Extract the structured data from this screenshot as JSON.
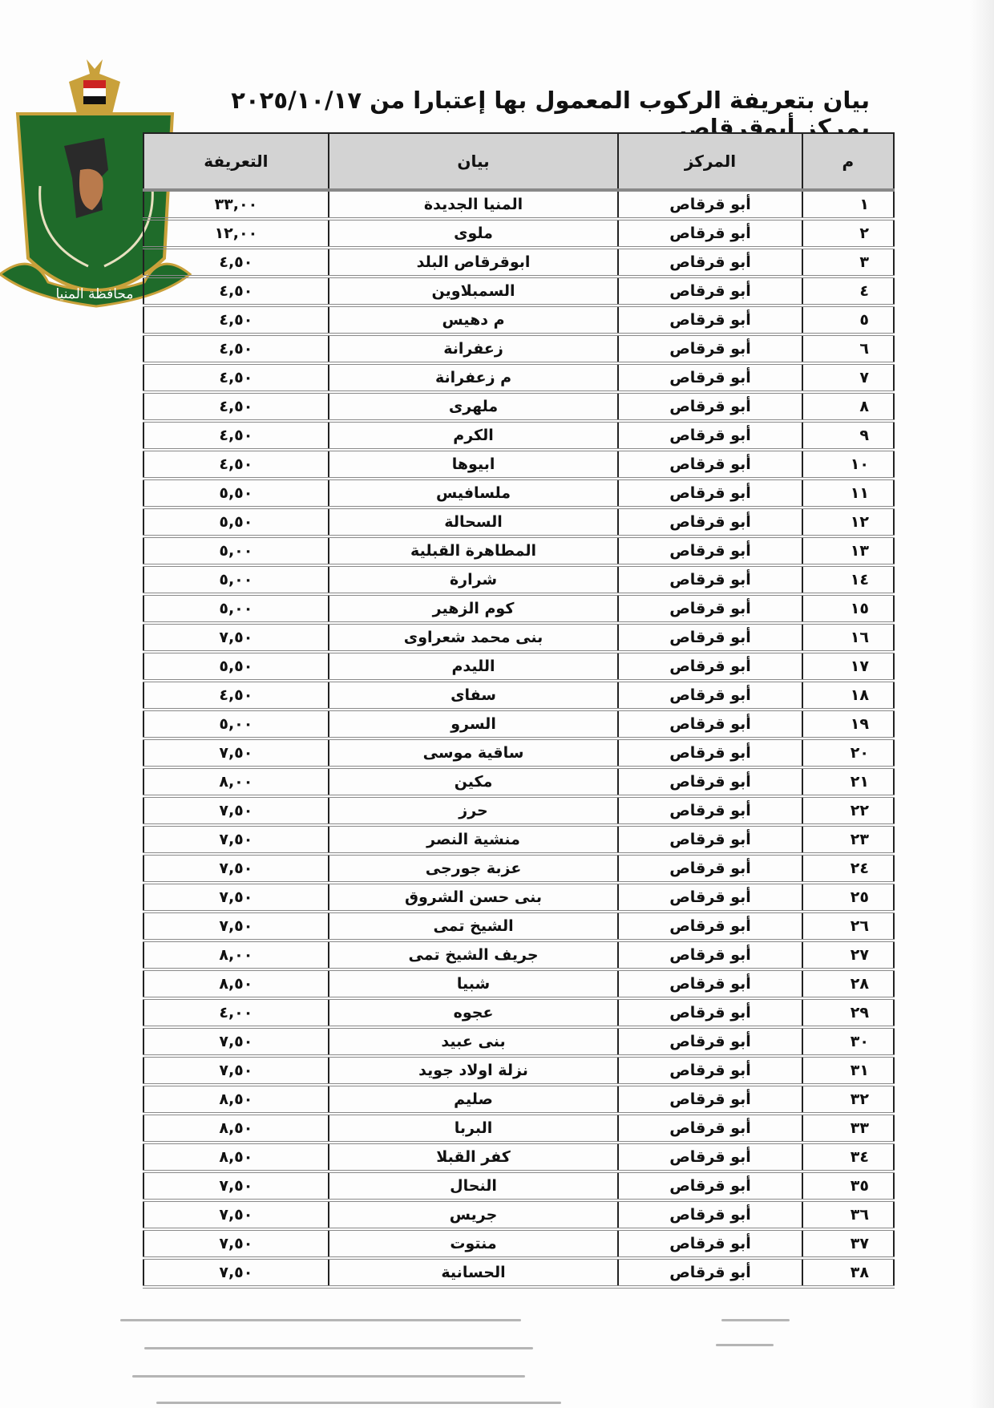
{
  "title": "بيان بتعريفة الركوب المعمول بها إعتبارا من ٢٠٢٥/١٠/١٧ بمركز أبوقرقاص",
  "logo": {
    "text": "محافظة المنيا",
    "colors": {
      "green": "#1f6b2a",
      "gold": "#c9a13b"
    }
  },
  "table": {
    "headers": {
      "num": "م",
      "center": "المركز",
      "desc": "بيان",
      "fare": "التعريفة"
    },
    "rows": [
      {
        "num": "١",
        "center": "أبو قرقاص",
        "desc": "المنيا الجديدة",
        "fare": "٣٣,٠٠"
      },
      {
        "num": "٢",
        "center": "أبو قرقاص",
        "desc": "ملوى",
        "fare": "١٢,٠٠"
      },
      {
        "num": "٣",
        "center": "أبو قرقاص",
        "desc": "ابوقرقاص البلد",
        "fare": "٤,٥٠"
      },
      {
        "num": "٤",
        "center": "أبو قرقاص",
        "desc": "السمبلاوين",
        "fare": "٤,٥٠"
      },
      {
        "num": "٥",
        "center": "أبو قرقاص",
        "desc": "م دهيس",
        "fare": "٤,٥٠"
      },
      {
        "num": "٦",
        "center": "أبو قرقاص",
        "desc": "زعفرانة",
        "fare": "٤,٥٠"
      },
      {
        "num": "٧",
        "center": "أبو قرقاص",
        "desc": "م زعفرانة",
        "fare": "٤,٥٠"
      },
      {
        "num": "٨",
        "center": "أبو قرقاص",
        "desc": "ملهرى",
        "fare": "٤,٥٠"
      },
      {
        "num": "٩",
        "center": "أبو قرقاص",
        "desc": "الكرم",
        "fare": "٤,٥٠"
      },
      {
        "num": "١٠",
        "center": "أبو قرقاص",
        "desc": "ابيوها",
        "fare": "٤,٥٠"
      },
      {
        "num": "١١",
        "center": "أبو قرقاص",
        "desc": "ملسافيس",
        "fare": "٥,٥٠"
      },
      {
        "num": "١٢",
        "center": "أبو قرقاص",
        "desc": "السحالة",
        "fare": "٥,٥٠"
      },
      {
        "num": "١٣",
        "center": "أبو قرقاص",
        "desc": "المطاهرة القبلية",
        "fare": "٥,٠٠"
      },
      {
        "num": "١٤",
        "center": "أبو قرقاص",
        "desc": "شرارة",
        "fare": "٥,٠٠"
      },
      {
        "num": "١٥",
        "center": "أبو قرقاص",
        "desc": "كوم الزهير",
        "fare": "٥,٠٠"
      },
      {
        "num": "١٦",
        "center": "أبو قرقاص",
        "desc": "بنى محمد شعراوى",
        "fare": "٧,٥٠"
      },
      {
        "num": "١٧",
        "center": "أبو قرقاص",
        "desc": "الليدم",
        "fare": "٥,٥٠"
      },
      {
        "num": "١٨",
        "center": "أبو قرقاص",
        "desc": "سفاى",
        "fare": "٤,٥٠"
      },
      {
        "num": "١٩",
        "center": "أبو قرقاص",
        "desc": "السرو",
        "fare": "٥,٠٠"
      },
      {
        "num": "٢٠",
        "center": "أبو قرقاص",
        "desc": "ساقية موسى",
        "fare": "٧,٥٠"
      },
      {
        "num": "٢١",
        "center": "أبو قرقاص",
        "desc": "مكين",
        "fare": "٨,٠٠"
      },
      {
        "num": "٢٢",
        "center": "أبو قرقاص",
        "desc": "حرز",
        "fare": "٧,٥٠"
      },
      {
        "num": "٢٣",
        "center": "أبو قرقاص",
        "desc": "منشية النصر",
        "fare": "٧,٥٠"
      },
      {
        "num": "٢٤",
        "center": "أبو قرقاص",
        "desc": "عزبة جورجى",
        "fare": "٧,٥٠"
      },
      {
        "num": "٢٥",
        "center": "أبو قرقاص",
        "desc": "بنى حسن الشروق",
        "fare": "٧,٥٠"
      },
      {
        "num": "٢٦",
        "center": "أبو قرقاص",
        "desc": "الشيخ تمى",
        "fare": "٧,٥٠"
      },
      {
        "num": "٢٧",
        "center": "أبو قرقاص",
        "desc": "جريف الشيخ تمى",
        "fare": "٨,٠٠"
      },
      {
        "num": "٢٨",
        "center": "أبو قرقاص",
        "desc": "شبيا",
        "fare": "٨,٥٠"
      },
      {
        "num": "٢٩",
        "center": "أبو قرقاص",
        "desc": "عجوه",
        "fare": "٤,٠٠"
      },
      {
        "num": "٣٠",
        "center": "أبو قرقاص",
        "desc": "بنى عبيد",
        "fare": "٧,٥٠"
      },
      {
        "num": "٣١",
        "center": "أبو قرقاص",
        "desc": "نزلة اولاد جويد",
        "fare": "٧,٥٠"
      },
      {
        "num": "٣٢",
        "center": "أبو قرقاص",
        "desc": "صليم",
        "fare": "٨,٥٠"
      },
      {
        "num": "٣٣",
        "center": "أبو قرقاص",
        "desc": "البربا",
        "fare": "٨,٥٠"
      },
      {
        "num": "٣٤",
        "center": "أبو قرقاص",
        "desc": "كفر القبلا",
        "fare": "٨,٥٠"
      },
      {
        "num": "٣٥",
        "center": "أبو قرقاص",
        "desc": "النحال",
        "fare": "٧,٥٠"
      },
      {
        "num": "٣٦",
        "center": "أبو قرقاص",
        "desc": "جريس",
        "fare": "٧,٥٠"
      },
      {
        "num": "٣٧",
        "center": "أبو قرقاص",
        "desc": "منتوت",
        "fare": "٧,٥٠"
      },
      {
        "num": "٣٨",
        "center": "أبو قرقاص",
        "desc": "الحسانية",
        "fare": "٧,٥٠"
      }
    ]
  }
}
